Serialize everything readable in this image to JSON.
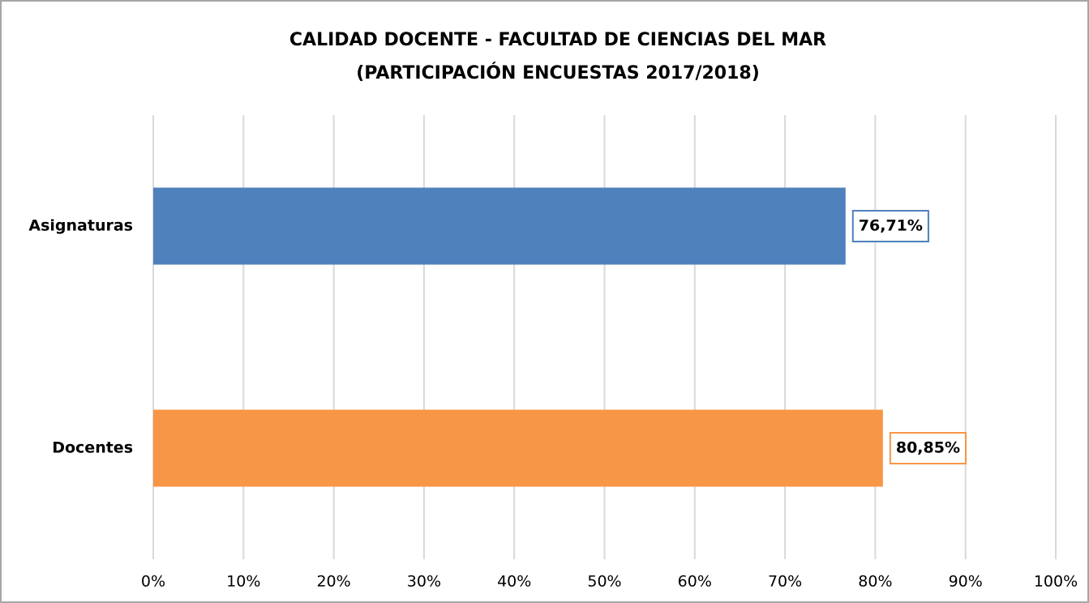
{
  "chart_data": {
    "type": "hbar",
    "title": [
      "CALIDAD DOCENTE - FACULTAD DE CIENCIAS DEL MAR",
      "(PARTICIPACIÓN ENCUESTAS 2017/2018)"
    ],
    "categories": [
      "Asignaturas",
      "Docentes"
    ],
    "values": [
      76.71,
      80.85
    ],
    "value_labels": [
      "76,71%",
      "80,85%"
    ],
    "colors": [
      "#4f81bd",
      "#f79646"
    ],
    "xlim": [
      0,
      100
    ],
    "xticks": [
      {
        "value": 0,
        "label": "0%"
      },
      {
        "value": 10,
        "label": "10%"
      },
      {
        "value": 20,
        "label": "20%"
      },
      {
        "value": 30,
        "label": "30%"
      },
      {
        "value": 40,
        "label": "40%"
      },
      {
        "value": 50,
        "label": "50%"
      },
      {
        "value": 60,
        "label": "60%"
      },
      {
        "value": 70,
        "label": "70%"
      },
      {
        "value": 80,
        "label": "80%"
      },
      {
        "value": 90,
        "label": "90%"
      },
      {
        "value": 100,
        "label": "100%"
      }
    ],
    "grid": true
  }
}
